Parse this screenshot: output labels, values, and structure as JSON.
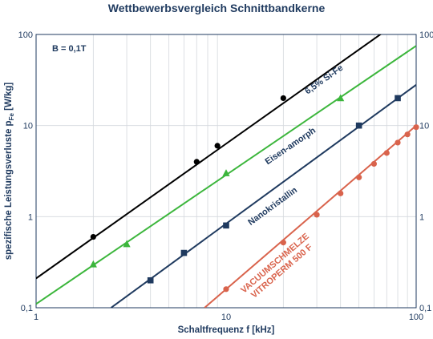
{
  "chart_data": {
    "type": "line",
    "title": "Wettbewerbsvergleich Schnittbandkerne",
    "xlabel": "Schaltfrequenz f [kHz]",
    "ylabel_main": "spezifische Leistungsverluste p",
    "ylabel_sub": "Fe",
    "ylabel_unit": " [W/kg]",
    "x_scale": "log",
    "y_scale": "log",
    "xlim": [
      1,
      100
    ],
    "ylim": [
      0.1,
      100
    ],
    "x_ticks": [
      {
        "value": 1,
        "label": "1"
      },
      {
        "value": 10,
        "label": "10"
      },
      {
        "value": 100,
        "label": "100"
      }
    ],
    "y_ticks": [
      {
        "value": 0.1,
        "label": "0,1"
      },
      {
        "value": 1,
        "label": "1"
      },
      {
        "value": 10,
        "label": "10"
      },
      {
        "value": 100,
        "label": "100"
      }
    ],
    "y_ticks_right": true,
    "grid": "log minor vertical lines",
    "condition_label": "B = 0,1T",
    "series": [
      {
        "name": "6,5% Si-Fe",
        "color": "#000000",
        "marker": "circle",
        "line": [
          [
            1,
            0.21
          ],
          [
            100,
            190
          ]
        ],
        "points": [
          [
            2,
            0.6
          ],
          [
            7,
            4
          ],
          [
            9,
            6
          ],
          [
            20,
            20
          ]
        ]
      },
      {
        "name": "Eisen-amorph",
        "color": "#3cb63c",
        "marker": "triangle",
        "line": [
          [
            1,
            0.11
          ],
          [
            100,
            75
          ]
        ],
        "points": [
          [
            2,
            0.3
          ],
          [
            3,
            0.5
          ],
          [
            10,
            3
          ],
          [
            40,
            20
          ]
        ]
      },
      {
        "name": "Nanokristallin",
        "color": "#1f3a5f",
        "marker": "square",
        "line": [
          [
            2.48,
            0.1
          ],
          [
            100,
            28
          ]
        ],
        "points": [
          [
            4,
            0.2
          ],
          [
            6,
            0.4
          ],
          [
            10,
            0.8
          ],
          [
            50,
            10
          ],
          [
            80,
            20
          ]
        ]
      },
      {
        "name": "VACUUMSCHMELZE\nVITROPERM 500 F",
        "label_lines": [
          "VACUUMSCHMELZE",
          "VITROPERM 500 F"
        ],
        "color": "#d9634c",
        "marker": "circle",
        "line": [
          [
            7.7,
            0.1
          ],
          [
            100,
            10
          ]
        ],
        "points": [
          [
            10,
            0.16
          ],
          [
            20,
            0.52
          ],
          [
            30,
            1.05
          ],
          [
            40,
            1.8
          ],
          [
            50,
            2.7
          ],
          [
            60,
            3.8
          ],
          [
            70,
            5
          ],
          [
            80,
            6.5
          ],
          [
            90,
            8
          ],
          [
            100,
            9.6
          ]
        ]
      }
    ]
  }
}
